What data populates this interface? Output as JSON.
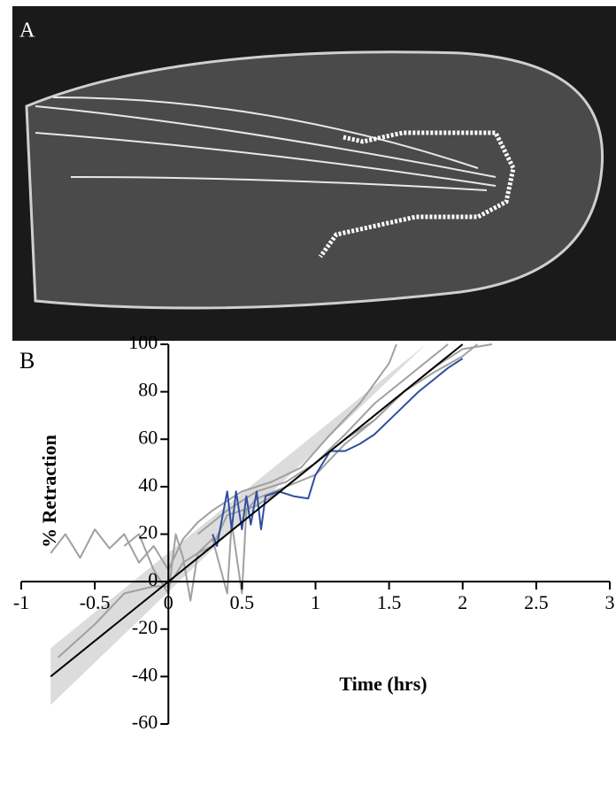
{
  "image_panel": {
    "label": "A"
  },
  "chart_data": {
    "type": "line",
    "panel_label": "B",
    "xlabel": "Time (hrs)",
    "ylabel": "% Retraction",
    "xlim": [
      -1,
      3
    ],
    "ylim": [
      -60,
      100
    ],
    "xticks": [
      -1,
      -0.5,
      0,
      0.5,
      1,
      1.5,
      2,
      2.5,
      3
    ],
    "yticks": [
      -60,
      -40,
      -20,
      0,
      20,
      40,
      60,
      80,
      100
    ],
    "band": {
      "color": "#dcdcdc",
      "x": [
        -0.8,
        1.75,
        2.88
      ],
      "upper": [
        -28,
        100,
        100
      ],
      "lower": [
        -52,
        100,
        100
      ]
    },
    "series": [
      {
        "color": "#a0a0a0",
        "x": [
          -0.8,
          -0.7,
          -0.6,
          -0.5,
          -0.4,
          -0.3,
          -0.2,
          -0.1,
          0,
          0.1,
          0.2,
          0.3,
          0.5,
          0.7,
          0.9,
          1.1,
          1.3,
          1.5,
          1.55
        ],
        "values": [
          12,
          20,
          10,
          22,
          14,
          20,
          8,
          15,
          5,
          18,
          25,
          30,
          38,
          42,
          48,
          62,
          75,
          92,
          100
        ]
      },
      {
        "color": "#a0a0a0",
        "x": [
          -0.75,
          -0.5,
          -0.3,
          -0.1,
          0,
          0.1,
          0.2,
          0.3,
          0.4,
          0.6,
          0.8,
          1.0,
          1.2,
          1.4,
          1.6,
          1.8,
          1.9
        ],
        "values": [
          -32,
          -18,
          -5,
          -2,
          -2,
          8,
          12,
          15,
          28,
          32,
          40,
          50,
          62,
          75,
          85,
          95,
          100
        ]
      },
      {
        "color": "#a0a0a0",
        "x": [
          -0.3,
          -0.2,
          -0.1,
          0,
          0.05,
          0.1,
          0.15,
          0.2,
          0.3,
          0.4,
          0.43,
          0.5,
          0.53,
          0.6,
          0.8,
          1.0,
          1.2,
          1.4,
          1.6,
          1.8,
          2.0,
          2.1
        ],
        "values": [
          15,
          20,
          5,
          -5,
          20,
          10,
          -8,
          12,
          18,
          -5,
          25,
          -5,
          30,
          35,
          40,
          45,
          58,
          68,
          80,
          88,
          95,
          100
        ]
      },
      {
        "color": "#a0a0a0",
        "x": [
          0.2,
          0.4,
          0.6,
          0.8,
          1.0,
          1.2,
          1.4,
          1.6,
          1.8,
          2.0,
          2.2
        ],
        "values": [
          20,
          30,
          38,
          42,
          50,
          60,
          68,
          80,
          90,
          98,
          100
        ]
      },
      {
        "color": "#2e4ea0",
        "x": [
          0.3,
          0.33,
          0.36,
          0.4,
          0.43,
          0.46,
          0.5,
          0.53,
          0.56,
          0.6,
          0.63,
          0.66,
          0.75,
          0.85,
          0.95,
          1.0,
          1.1,
          1.2,
          1.3,
          1.4,
          1.5,
          1.6,
          1.7,
          1.8,
          1.9,
          2.0
        ],
        "values": [
          20,
          15,
          25,
          38,
          22,
          38,
          22,
          36,
          24,
          38,
          22,
          36,
          38,
          36,
          35,
          45,
          55,
          55,
          58,
          62,
          68,
          74,
          80,
          85,
          90,
          94
        ]
      },
      {
        "color": "#000000",
        "x": [
          -0.8,
          2.0
        ],
        "values": [
          -40,
          100
        ]
      }
    ]
  }
}
